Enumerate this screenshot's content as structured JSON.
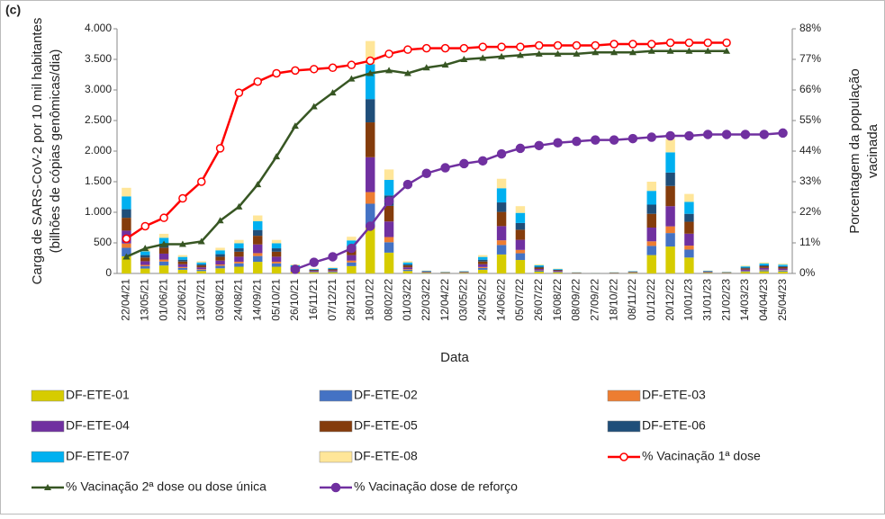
{
  "chart_data": {
    "type": "bar",
    "panel_label": "(c)",
    "y_label": [
      "Carga de SARS-CoV-2 por 10 mil habitantes",
      "(bilhões de cópias genômicas/dia)"
    ],
    "y2_label": [
      "Porcentagem da população",
      "vacinada"
    ],
    "x_label": "Data",
    "stacked": true,
    "categories": [
      "22/04/21",
      "13/05/21",
      "01/06/21",
      "22/06/21",
      "13/07/21",
      "03/08/21",
      "24/08/21",
      "14/09/21",
      "05/10/21",
      "26/10/21",
      "16/11/21",
      "07/12/21",
      "28/12/21",
      "18/01/22",
      "08/02/22",
      "01/03/22",
      "22/03/22",
      "12/04/22",
      "03/05/22",
      "24/05/22",
      "14/06/22",
      "05/07/22",
      "26/07/22",
      "16/08/22",
      "08/09/22",
      "27/09/22",
      "18/10/22",
      "08/11/22",
      "01/12/22",
      "20/12/22",
      "10/01/23",
      "31/01/23",
      "21/02/23",
      "14/03/23",
      "04/04/23",
      "25/04/23"
    ],
    "ylim": [
      0,
      4000
    ],
    "yticks": [
      0,
      500,
      {
        "value": 1000,
        "label": "1.000"
      },
      {
        "value": 1500,
        "label": "1.500"
      },
      {
        "value": 2000,
        "label": "2.000"
      },
      {
        "value": 2500,
        "label": "2.500"
      },
      {
        "value": 3000,
        "label": "3.000"
      },
      {
        "value": 3500,
        "label": "3.500"
      },
      {
        "value": 4000,
        "label": "4.000"
      }
    ],
    "y2lim": [
      0,
      88
    ],
    "y2ticks": [
      {
        "value": 0,
        "label": "0%"
      },
      {
        "value": 11,
        "label": "11%"
      },
      {
        "value": 22,
        "label": "22%"
      },
      {
        "value": 33,
        "label": "33%"
      },
      {
        "value": 44,
        "label": "44%"
      },
      {
        "value": 55,
        "label": "55%"
      },
      {
        "value": 66,
        "label": "66%"
      },
      {
        "value": 77,
        "label": "77%"
      },
      {
        "value": 88,
        "label": "88%"
      }
    ],
    "series": [
      {
        "name": "DF-ETE-01",
        "color": "#d6cc00",
        "values": [
          280,
          80,
          130,
          60,
          40,
          84,
          110,
          190,
          110,
          30,
          16,
          20,
          120,
          760,
          340,
          40,
          10,
          6,
          8,
          60,
          310,
          220,
          30,
          16,
          4,
          2,
          4,
          8,
          300,
          440,
          260,
          10,
          6,
          26,
          36,
          32
        ]
      },
      {
        "name": "DF-ETE-02",
        "color": "#4472c4",
        "values": [
          140,
          40,
          65,
          30,
          20,
          42,
          55,
          95,
          55,
          15,
          8,
          10,
          60,
          380,
          170,
          20,
          5,
          3,
          4,
          30,
          155,
          110,
          15,
          8,
          2,
          1,
          2,
          4,
          150,
          220,
          130,
          5,
          3,
          13,
          18,
          16
        ]
      },
      {
        "name": "DF-ETE-03",
        "color": "#ed7d31",
        "values": [
          70,
          20,
          32,
          15,
          10,
          21,
          27,
          47,
          27,
          7,
          4,
          5,
          30,
          190,
          85,
          10,
          2,
          1,
          2,
          15,
          77,
          55,
          7,
          4,
          1,
          0,
          1,
          2,
          75,
          110,
          65,
          2,
          1,
          6,
          9,
          8
        ]
      },
      {
        "name": "DF-ETE-04",
        "color": "#7030a0",
        "values": [
          210,
          60,
          97,
          45,
          30,
          63,
          82,
          142,
          82,
          22,
          12,
          15,
          90,
          570,
          255,
          30,
          7,
          4,
          6,
          45,
          232,
          165,
          22,
          12,
          3,
          1,
          3,
          6,
          225,
          330,
          195,
          7,
          4,
          19,
          27,
          24
        ]
      },
      {
        "name": "DF-ETE-05",
        "color": "#843c0c",
        "values": [
          210,
          60,
          97,
          45,
          30,
          63,
          82,
          142,
          82,
          22,
          12,
          15,
          90,
          570,
          255,
          30,
          7,
          4,
          6,
          45,
          232,
          165,
          22,
          12,
          3,
          1,
          3,
          6,
          225,
          330,
          195,
          7,
          4,
          19,
          27,
          24
        ]
      },
      {
        "name": "DF-ETE-06",
        "color": "#1f4e79",
        "values": [
          140,
          40,
          65,
          30,
          20,
          42,
          55,
          95,
          55,
          15,
          8,
          10,
          60,
          380,
          170,
          20,
          5,
          3,
          4,
          30,
          155,
          110,
          15,
          8,
          2,
          1,
          2,
          4,
          150,
          220,
          130,
          5,
          3,
          13,
          18,
          16
        ]
      },
      {
        "name": "DF-ETE-07",
        "color": "#00b0f0",
        "values": [
          210,
          60,
          97,
          45,
          30,
          63,
          82,
          142,
          82,
          22,
          12,
          15,
          90,
          570,
          255,
          30,
          7,
          4,
          6,
          45,
          232,
          165,
          22,
          12,
          3,
          1,
          3,
          6,
          225,
          330,
          195,
          7,
          4,
          19,
          27,
          24
        ]
      },
      {
        "name": "DF-ETE-08",
        "color": "#ffe699",
        "values": [
          140,
          40,
          65,
          30,
          20,
          42,
          55,
          95,
          55,
          15,
          8,
          10,
          60,
          380,
          170,
          20,
          5,
          3,
          4,
          30,
          155,
          110,
          15,
          8,
          2,
          1,
          2,
          4,
          150,
          220,
          130,
          5,
          3,
          13,
          18,
          16
        ]
      },
      {
        "name": "% Vacinação 1ª dose",
        "color": "#ff0000",
        "type": "line",
        "marker": "circle-open",
        "axis": "y2",
        "values": [
          12.5,
          17,
          20,
          27,
          33,
          45,
          65,
          69,
          72,
          73,
          73.5,
          74,
          75,
          76.5,
          79,
          80.5,
          81,
          81,
          81,
          81.5,
          81.5,
          81.5,
          82,
          82,
          82,
          82,
          82.5,
          82.5,
          82.5,
          83,
          83,
          83,
          83,
          null,
          null,
          null
        ]
      },
      {
        "name": "% Vacinação 2ª dose ou dose única",
        "color": "#375623",
        "type": "line",
        "marker": "triangle",
        "axis": "y2",
        "values": [
          6,
          9,
          10.5,
          10.5,
          11.5,
          19,
          24,
          32,
          42,
          53,
          60,
          65,
          70,
          72,
          73,
          72,
          74,
          75,
          77,
          77.5,
          78,
          78.5,
          79,
          79,
          79,
          79.5,
          79.5,
          79.5,
          80,
          80,
          80,
          80,
          80,
          null,
          null,
          null
        ]
      },
      {
        "name": "% Vacinação dose de reforço",
        "color": "#7030a0",
        "type": "line",
        "marker": "circle",
        "axis": "y2",
        "values": [
          null,
          null,
          null,
          null,
          null,
          null,
          null,
          null,
          null,
          1.5,
          4,
          6,
          9,
          17,
          26,
          32,
          36,
          38,
          39.5,
          40.5,
          43,
          45,
          46,
          47,
          47.5,
          48,
          48,
          48.5,
          49,
          49.5,
          49.5,
          50,
          50,
          50,
          50,
          50.5
        ]
      }
    ]
  }
}
